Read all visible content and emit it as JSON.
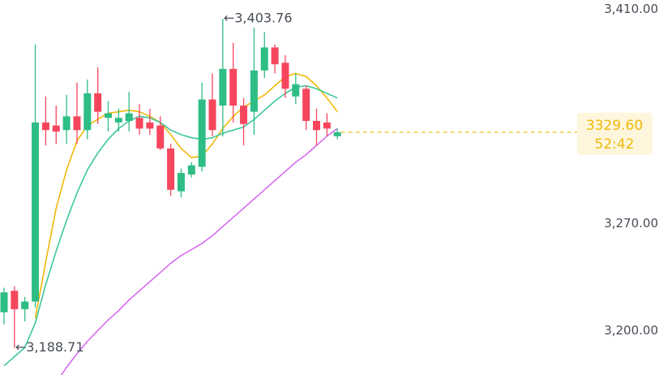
{
  "chart_data": {
    "type": "candlestick",
    "up_color": "#2ebd85",
    "down_color": "#f6465d",
    "open": [
      3212,
      3226,
      3214,
      3219,
      3336,
      3334,
      3331,
      3340,
      3331,
      3355,
      3339,
      3336,
      3337,
      3339,
      3336,
      3334,
      3319,
      3291,
      3302,
      3307,
      3351,
      3347,
      3371,
      3347,
      3343,
      3370,
      3385,
      3375,
      3353,
      3358,
      3337,
      3336,
      3327
    ],
    "high": [
      3228,
      3229,
      3222,
      3387,
      3353,
      3347,
      3354,
      3362,
      3364,
      3372,
      3350,
      3345,
      3356,
      3348,
      3345,
      3340,
      3322,
      3306,
      3310,
      3362,
      3368,
      3403.76,
      3388,
      3352,
      3398,
      3395,
      3387,
      3380,
      3368,
      3360,
      3345,
      3342,
      3332
    ],
    "low": [
      3204,
      3188.71,
      3206,
      3215,
      3321,
      3322,
      3322,
      3322,
      3325,
      3335,
      3330,
      3330,
      3330,
      3328,
      3328,
      3318,
      3288,
      3287,
      3300,
      3304,
      3327,
      3327,
      3336,
      3321,
      3328,
      3365,
      3368,
      3352,
      3348,
      3331,
      3321,
      3327,
      3325
    ],
    "close": [
      3225,
      3214,
      3219,
      3336,
      3331,
      3330,
      3340,
      3331,
      3355,
      3343,
      3342,
      3339,
      3342,
      3332,
      3332,
      3319,
      3292,
      3303,
      3308,
      3351,
      3331,
      3371,
      3347,
      3335,
      3370,
      3385,
      3374,
      3358,
      3361,
      3337,
      3331,
      3332,
      3329.6
    ],
    "series": [
      {
        "color": "#f0b90b",
        "values": [
          null,
          null,
          null,
          3208,
          3245,
          3280,
          3305,
          3324,
          3334,
          3338,
          3342,
          3343,
          3344,
          3343,
          3340,
          3336,
          3328,
          3319,
          3313,
          3314,
          3322,
          3332,
          3340,
          3346,
          3350,
          3354,
          3360,
          3366,
          3368,
          3366,
          3360,
          3352,
          3343
        ]
      },
      {
        "color": "#3cc89a",
        "values": [
          3177,
          3183,
          3189,
          3205,
          3230,
          3252,
          3272,
          3290,
          3305,
          3316,
          3325,
          3332,
          3337,
          3340,
          3339,
          3336,
          3331,
          3328,
          3326,
          3325,
          3326,
          3329,
          3331,
          3333,
          3338,
          3344,
          3350,
          3355,
          3359,
          3360,
          3358,
          3355,
          3352
        ]
      },
      {
        "color": "#d66cf0",
        "values": [
          null,
          null,
          null,
          null,
          null,
          3166,
          3176,
          3185,
          3193,
          3200,
          3207,
          3213,
          3220,
          3226,
          3232,
          3238,
          3244,
          3249,
          3253,
          3257,
          3262,
          3268,
          3274,
          3280,
          3286,
          3292,
          3298,
          3304,
          3310,
          3315,
          3321,
          3327,
          3332
        ]
      }
    ],
    "ylim": [
      3171,
      3416
    ],
    "yticks": [
      {
        "value": 3410,
        "label": "3,410.00"
      },
      {
        "value": 3270,
        "label": "3,270.00"
      },
      {
        "value": 3200,
        "label": "3,200.00"
      }
    ],
    "high_marker": {
      "value": 3403.76,
      "label": "←3,403.76"
    },
    "low_marker": {
      "value": 3188.71,
      "label": "←3,188.71"
    },
    "current_price": {
      "value": 3329.6,
      "label": "3329.60",
      "color": "#f0b90b"
    },
    "countdown": "52:42"
  }
}
